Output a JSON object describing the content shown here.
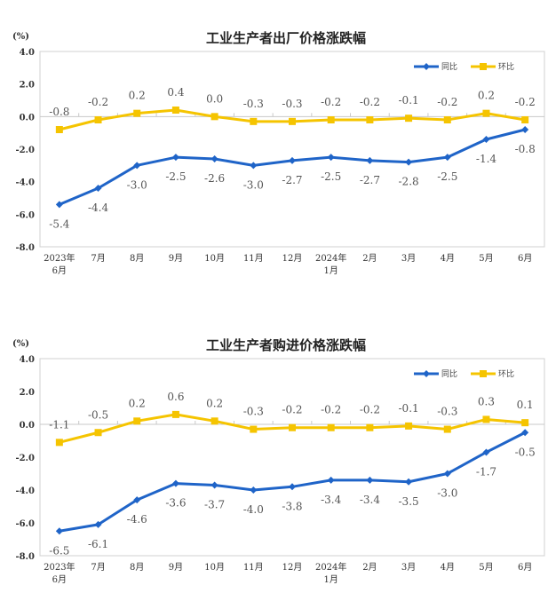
{
  "chart_data": [
    {
      "type": "line",
      "title": "工业生产者出厂价格涨跌幅",
      "unit_label": "(%)",
      "categories": [
        [
          "2023年",
          "6月"
        ],
        [
          "7月"
        ],
        [
          "8月"
        ],
        [
          "9月"
        ],
        [
          "10月"
        ],
        [
          "11月"
        ],
        [
          "12月"
        ],
        [
          "2024年",
          "1月"
        ],
        [
          "2月"
        ],
        [
          "3月"
        ],
        [
          "4月"
        ],
        [
          "5月"
        ],
        [
          "6月"
        ]
      ],
      "ylim": [
        -8.0,
        4.0
      ],
      "yticks": [
        "4.0",
        "2.0",
        "0.0",
        "-2.0",
        "-4.0",
        "-6.0",
        "-8.0"
      ],
      "legend_position": "top-right",
      "series": [
        {
          "name": "同比",
          "color": "#1f64c8",
          "marker": "diamond",
          "label_position": "below",
          "values": [
            -5.4,
            -4.4,
            -3.0,
            -2.5,
            -2.6,
            -3.0,
            -2.7,
            -2.5,
            -2.7,
            -2.8,
            -2.5,
            -1.4,
            -0.8
          ]
        },
        {
          "name": "环比",
          "color": "#f5c400",
          "marker": "square",
          "label_position": "above",
          "values": [
            -0.8,
            -0.2,
            0.2,
            0.4,
            0.0,
            -0.3,
            -0.3,
            -0.2,
            -0.2,
            -0.1,
            -0.2,
            0.2,
            -0.2
          ]
        }
      ]
    },
    {
      "type": "line",
      "title": "工业生产者购进价格涨跌幅",
      "unit_label": "(%)",
      "categories": [
        [
          "2023年",
          "6月"
        ],
        [
          "7月"
        ],
        [
          "8月"
        ],
        [
          "9月"
        ],
        [
          "10月"
        ],
        [
          "11月"
        ],
        [
          "12月"
        ],
        [
          "2024年",
          "1月"
        ],
        [
          "2月"
        ],
        [
          "3月"
        ],
        [
          "4月"
        ],
        [
          "5月"
        ],
        [
          "6月"
        ]
      ],
      "ylim": [
        -8.0,
        4.0
      ],
      "yticks": [
        "4.0",
        "2.0",
        "0.0",
        "-2.0",
        "-4.0",
        "-6.0",
        "-8.0"
      ],
      "legend_position": "top-right",
      "series": [
        {
          "name": "同比",
          "color": "#1f64c8",
          "marker": "diamond",
          "label_position": "below",
          "values": [
            -6.5,
            -6.1,
            -4.6,
            -3.6,
            -3.7,
            -4.0,
            -3.8,
            -3.4,
            -3.4,
            -3.5,
            -3.0,
            -1.7,
            -0.5
          ]
        },
        {
          "name": "环比",
          "color": "#f5c400",
          "marker": "square",
          "label_position": "above",
          "values": [
            -1.1,
            -0.5,
            0.2,
            0.6,
            0.2,
            -0.3,
            -0.2,
            -0.2,
            -0.2,
            -0.1,
            -0.3,
            0.3,
            0.1
          ]
        }
      ]
    }
  ]
}
